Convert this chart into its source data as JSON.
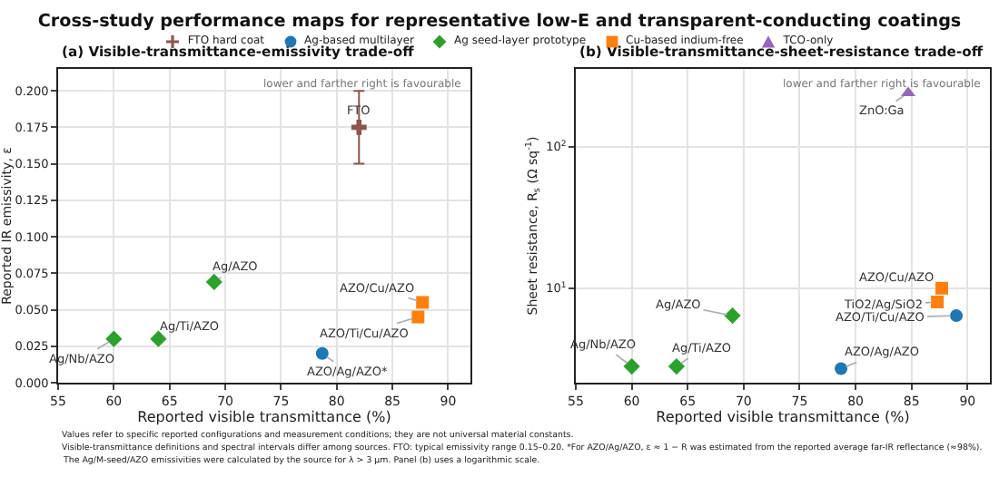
{
  "chart_data": [
    {
      "type": "scatter",
      "title": "Cross-study performance maps for representative low-E and transparent-conducting coatings",
      "subtitle": "(a) Visible-transmittance-emissivity trade-off",
      "xlabel": "Reported visible transmittance (%)",
      "ylabel": "Reported IR emissivity, ε",
      "xlim": [
        55,
        92
      ],
      "xticks": [
        55,
        60,
        65,
        70,
        75,
        80,
        85,
        90
      ],
      "ylim": [
        0,
        0.215
      ],
      "yticks": [
        {
          "value": 0,
          "label": "0.000"
        },
        0.025,
        {
          "value": 0.05,
          "label": "0.050"
        },
        0.075,
        {
          "value": 0.1,
          "label": "0.100"
        },
        0.125,
        {
          "value": 0.15,
          "label": "0.150"
        },
        0.175,
        {
          "value": 0.2,
          "label": "0.200"
        }
      ],
      "grid": true,
      "legend": "top",
      "series": [
        {
          "name": "FTO hard coat",
          "color": "#8c564b",
          "marker": "cross",
          "x": [
            82
          ],
          "values": [
            0.175
          ],
          "errors": [
            [
              0.15,
              0.2
            ]
          ]
        },
        {
          "name": "Ag-based multilayer",
          "color": "#1f77b4",
          "marker": "circle",
          "x": [
            78.7
          ],
          "values": [
            0.02
          ]
        },
        {
          "name": "Ag seed-layer prototype",
          "color": "#2ca02c",
          "marker": "diamond",
          "x": [
            60,
            64,
            69
          ],
          "values": [
            0.03,
            0.03,
            0.069
          ]
        },
        {
          "name": "Cu-based indium-free",
          "color": "#ff7f0e",
          "marker": "square",
          "x": [
            87.7,
            87.3
          ],
          "values": [
            0.055,
            0.045
          ]
        }
      ],
      "annotations": [
        {
          "text": "FTO",
          "x": 82,
          "y": 0.175
        },
        {
          "text": "AZO/Ag/AZO*",
          "x": 78.7,
          "y": 0.02
        },
        {
          "text": "Ag/Nb/AZO",
          "x": 60,
          "y": 0.03
        },
        {
          "text": "Ag/Ti/AZO",
          "x": 64,
          "y": 0.03
        },
        {
          "text": "Ag/AZO",
          "x": 69,
          "y": 0.069
        },
        {
          "text": "AZO/Cu/AZO",
          "x": 87.7,
          "y": 0.055
        },
        {
          "text": "AZO/Ti/Cu/AZO",
          "x": 87.3,
          "y": 0.045
        },
        "lower and farther right is favourable",
        "Values refer to specific reported configurations and measurement conditions; they are not universal material constants.",
        "Visible-transmittance definitions and spectral intervals differ among sources. FTO: typical emissivity range 0.15–0.20. *For AZO/Ag/AZO, ε ≈ 1 − R was estimated from the reported average far-IR reflectance (≈98%).",
        "The Ag/M-seed/AZO emissivities were calculated by the source for λ > 3 μm. Panel (b) uses a logarithmic scale."
      ]
    },
    {
      "type": "scatter",
      "title": "(b) Visible-transmittance-sheet-resistance trade-off",
      "xlabel": "Reported visible transmittance (%)",
      "ylabel": "Sheet resistance, R$_{s}$ (Ω sq$^{-1}$)",
      "xlim": [
        55,
        92
      ],
      "xticks": [
        55,
        60,
        65,
        70,
        75,
        80,
        85,
        90
      ],
      "log": "y",
      "ylim": [
        2.15,
        355
      ],
      "yticks": [
        {
          "value": 10,
          "label": "10$^{1}$"
        },
        {
          "value": 100,
          "label": "10$^{2}$"
        }
      ],
      "grid": true,
      "legend": "top",
      "series": [
        {
          "name": "Ag-based multilayer",
          "color": "#1f77b4",
          "marker": "circle",
          "x": [
            78.7,
            89
          ],
          "values": [
            2.7,
            6.4
          ]
        },
        {
          "name": "Ag seed-layer prototype",
          "color": "#2ca02c",
          "marker": "diamond",
          "x": [
            60,
            64,
            69
          ],
          "values": [
            2.8,
            2.8,
            6.4
          ]
        },
        {
          "name": "Cu-based indium-free",
          "color": "#ff7f0e",
          "marker": "square",
          "x": [
            87.7,
            87.3
          ],
          "values": [
            10,
            8
          ]
        },
        {
          "name": "TCO-only",
          "color": "#9467bd",
          "marker": "triangle",
          "x": [
            84.7
          ],
          "values": [
            240
          ]
        }
      ],
      "annotations": [
        {
          "text": "ZnO:Ga",
          "x": 84.7,
          "y": 240
        },
        {
          "text": "AZO/Cu/AZO",
          "x": 87.7,
          "y": 10
        },
        {
          "text": "TiO2/Ag/SiO2",
          "x": 87.3,
          "y": 8
        },
        {
          "text": "AZO/Ti/Cu/AZO",
          "x": 89,
          "y": 6.4
        },
        {
          "text": "Ag/AZO",
          "x": 69,
          "y": 6.4
        },
        {
          "text": "Ag/Nb/AZO",
          "x": 60,
          "y": 2.8
        },
        {
          "text": "Ag/Ti/AZO",
          "x": 64,
          "y": 2.8
        },
        {
          "text": "AZO/Ag/AZO",
          "x": 78.7,
          "y": 2.7
        },
        "lower and farther right is favourable"
      ]
    }
  ]
}
